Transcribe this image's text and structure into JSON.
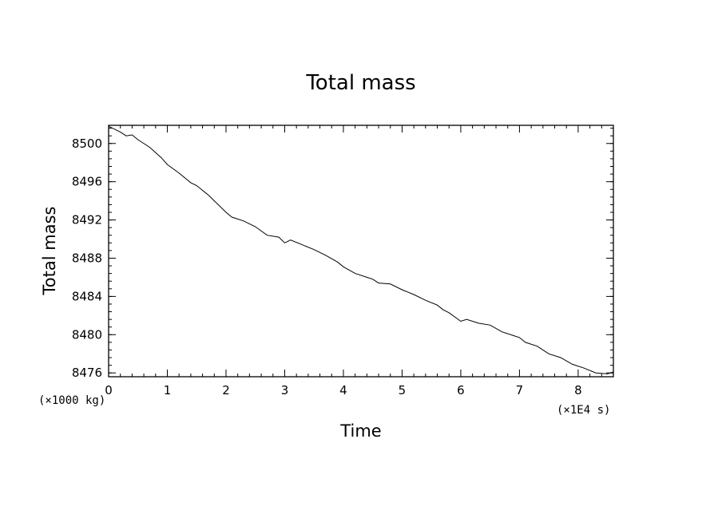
{
  "chart_data": {
    "type": "line",
    "title": "Total mass",
    "xlabel": "Time",
    "ylabel": "Total mass",
    "x_unit": "(×1E4 s)",
    "y_unit": "(×1000 kg)",
    "xlim": [
      0,
      8.6
    ],
    "ylim": [
      8475.6,
      8501.9
    ],
    "x_ticks": [
      0,
      1,
      2,
      3,
      4,
      5,
      6,
      7,
      8
    ],
    "y_ticks": [
      8476,
      8480,
      8484,
      8488,
      8492,
      8496,
      8500
    ],
    "grid": false,
    "legend": "none",
    "line_color": "#000000",
    "series": [
      {
        "x": [
          0,
          0.2,
          0.3,
          0.4,
          0.5,
          0.7,
          0.9,
          1.0,
          1.2,
          1.4,
          1.5,
          1.7,
          1.8,
          2.0,
          2.1,
          2.3,
          2.5,
          2.7,
          2.9,
          3.0,
          3.1,
          3.3,
          3.5,
          3.7,
          3.9,
          4.0,
          4.2,
          4.4,
          4.5,
          4.6,
          4.8,
          5.0,
          5.2,
          5.4,
          5.6,
          5.7,
          5.8,
          6.0,
          6.1,
          6.3,
          6.5,
          6.7,
          6.9,
          7.0,
          7.1,
          7.3,
          7.5,
          7.7,
          7.9,
          8.1,
          8.3,
          8.5,
          8.6
        ],
        "y": [
          8501.8,
          8501.2,
          8500.8,
          8500.9,
          8500.4,
          8499.6,
          8498.5,
          8497.8,
          8496.9,
          8495.9,
          8495.6,
          8494.6,
          8494.0,
          8492.8,
          8492.3,
          8491.9,
          8491.3,
          8490.4,
          8490.2,
          8489.6,
          8489.9,
          8489.4,
          8488.9,
          8488.3,
          8487.6,
          8487.1,
          8486.4,
          8486.0,
          8485.8,
          8485.4,
          8485.3,
          8484.7,
          8484.2,
          8483.6,
          8483.1,
          8482.6,
          8482.3,
          8481.4,
          8481.6,
          8481.2,
          8481.0,
          8480.3,
          8479.9,
          8479.7,
          8479.2,
          8478.8,
          8478.0,
          8477.6,
          8476.9,
          8476.5,
          8476.0,
          8475.9,
          8476.1
        ]
      }
    ]
  }
}
